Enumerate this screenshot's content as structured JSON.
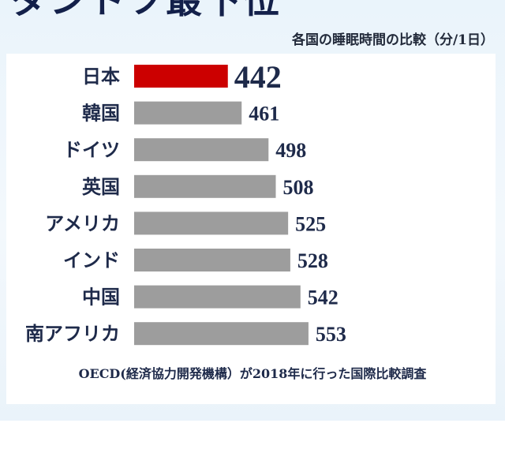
{
  "header": {
    "headline": "ダントツ最下位",
    "subtitle": "各国の睡眠時間の比較（分/1日）"
  },
  "footnote": "OECD(経済協力開発機構）が2018年に行った国際比較調査",
  "colors": {
    "highlight": "#cc0000",
    "bar": "#9d9d9d",
    "text": "#1e2a4a"
  },
  "chart_data": {
    "type": "bar",
    "orientation": "horizontal",
    "title": "各国の睡眠時間の比較（分/1日）",
    "categories": [
      "日本",
      "韓国",
      "ドイツ",
      "英国",
      "アメリカ",
      "インド",
      "中国",
      "南アフリカ"
    ],
    "values": [
      442,
      461,
      498,
      508,
      525,
      528,
      542,
      553
    ],
    "highlight": "日本",
    "grid": false,
    "legend": "none"
  }
}
